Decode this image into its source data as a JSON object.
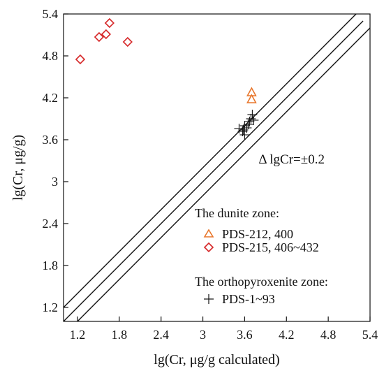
{
  "chart_data": {
    "type": "scatter",
    "xlabel": "lg(Cr, μg/g calculated)",
    "ylabel": "lg(Cr, μg/g)",
    "xlim": [
      1.0,
      5.4
    ],
    "ylim": [
      1.0,
      5.4
    ],
    "x_ticks": [
      {
        "value": 1.2,
        "label": "1.2"
      },
      {
        "value": 1.8,
        "label": "1.8"
      },
      {
        "value": 2.4,
        "label": "2.4"
      },
      {
        "value": 3.0,
        "label": "3"
      },
      {
        "value": 3.6,
        "label": "3.6"
      },
      {
        "value": 4.2,
        "label": "4.2"
      },
      {
        "value": 4.8,
        "label": "4.8"
      },
      {
        "value": 5.4,
        "label": "5.4"
      }
    ],
    "y_ticks": [
      {
        "value": 1.2,
        "label": "1.2"
      },
      {
        "value": 1.8,
        "label": "1.8"
      },
      {
        "value": 2.4,
        "label": "2.4"
      },
      {
        "value": 3.0,
        "label": "3"
      },
      {
        "value": 3.6,
        "label": "3.6"
      },
      {
        "value": 4.2,
        "label": "4.2"
      },
      {
        "value": 4.8,
        "label": "4.8"
      },
      {
        "value": 5.4,
        "label": "5.4"
      }
    ],
    "reference_lines": [
      {
        "offset": 0.2,
        "x_end": 5.2
      },
      {
        "offset": 0.0,
        "x_end": 5.3
      },
      {
        "offset": -0.2,
        "x_end": 5.4
      }
    ],
    "annotation": "Δ lgCr=±0.2",
    "annotation_pos": {
      "x": 3.8,
      "y": 3.26
    },
    "legend": {
      "groups": [
        {
          "heading": "The dunite zone:",
          "series": [
            "PDS-212, 400",
            "PDS-215, 406~432"
          ]
        },
        {
          "heading": "The orthopyroxenite zone:",
          "series": [
            "PDS-1~93"
          ]
        }
      ]
    },
    "series": [
      {
        "name": "PDS-212, 400",
        "marker": "triangle",
        "color": "#E8762B",
        "points": [
          [
            3.7,
            4.28
          ],
          [
            3.7,
            4.18
          ]
        ]
      },
      {
        "name": "PDS-215, 406~432",
        "marker": "diamond",
        "color": "#D62728",
        "points": [
          [
            1.24,
            4.75
          ],
          [
            1.51,
            5.07
          ],
          [
            1.61,
            5.11
          ],
          [
            1.66,
            5.27
          ],
          [
            1.92,
            5.0
          ]
        ]
      },
      {
        "name": "PDS-1~93",
        "marker": "plus",
        "color": "#111111",
        "points": [
          [
            3.52,
            3.76
          ],
          [
            3.57,
            3.72
          ],
          [
            3.6,
            3.67
          ],
          [
            3.6,
            3.8
          ],
          [
            3.63,
            3.77
          ],
          [
            3.65,
            3.82
          ],
          [
            3.67,
            3.86
          ],
          [
            3.69,
            3.9
          ],
          [
            3.71,
            3.96
          ],
          [
            3.73,
            3.88
          ],
          [
            3.58,
            3.74
          ]
        ]
      }
    ]
  }
}
